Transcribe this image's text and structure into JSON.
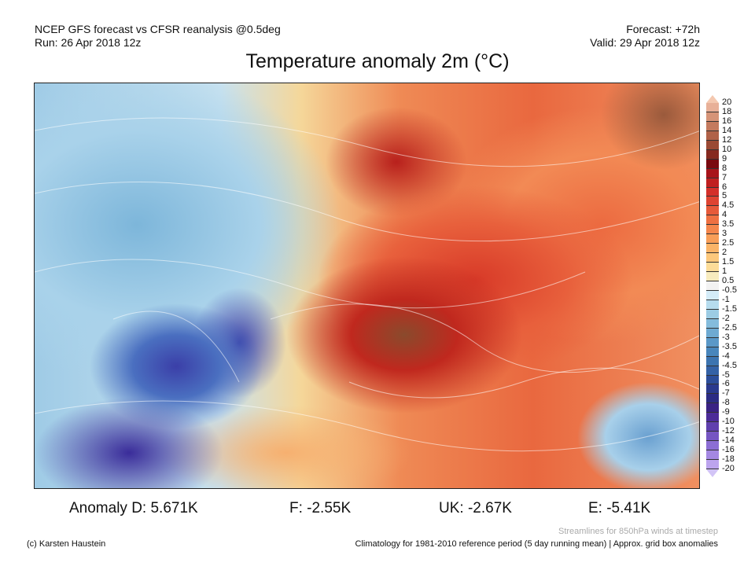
{
  "header": {
    "line1": "NCEP GFS forecast vs CFSR reanalysis @0.5deg",
    "line2": "Run: 26 Apr 2018 12z",
    "forecast": "Forecast: +72h",
    "valid": "Valid: 29 Apr 2018 12z"
  },
  "title": "Temperature anomaly 2m (°C)",
  "colorbar": {
    "labels": [
      "20",
      "18",
      "16",
      "14",
      "12",
      "10",
      "9",
      "8",
      "7",
      "6",
      "5",
      "4.5",
      "4",
      "3.5",
      "3",
      "2.5",
      "2",
      "1.5",
      "1",
      "0.5",
      "-0.5",
      "-1",
      "-1.5",
      "-2",
      "-2.5",
      "-3",
      "-3.5",
      "-4",
      "-4.5",
      "-5",
      "-6",
      "-7",
      "-8",
      "-9",
      "-10",
      "-12",
      "-14",
      "-16",
      "-18",
      "-20"
    ],
    "colors": [
      "#f4c8b0",
      "#e8b098",
      "#d69478",
      "#c47a5e",
      "#b06248",
      "#9a4a34",
      "#862a20",
      "#7a0a10",
      "#a8141a",
      "#c02020",
      "#d4302a",
      "#de4432",
      "#e65a3a",
      "#ee7042",
      "#f4864c",
      "#f89e58",
      "#fab468",
      "#fcc87c",
      "#fcdc98",
      "#f8ecbe",
      "#f2f2f2",
      "#d4ecf8",
      "#b6dcee",
      "#9ccce4",
      "#84bcdc",
      "#6eaad2",
      "#5a98c8",
      "#4886bc",
      "#3c74b0",
      "#3462a6",
      "#2c4e9a",
      "#2a3a8e",
      "#2c2c84",
      "#3a2284",
      "#4c2c98",
      "#6040ae",
      "#7656c2",
      "#8c6ed4",
      "#a488e2",
      "#bca4ee",
      "#d2c4f6"
    ]
  },
  "anomalies": {
    "d": "Anomaly D: 5.671K",
    "f": "F: -2.55K",
    "uk": "UK: -2.67K",
    "e": "E: -5.41K"
  },
  "footer": {
    "streamlines": "Streamlines for 850hPa winds at timestep",
    "credit": "(c) Karsten Haustein",
    "climatology": "Climatology for 1981-2010 reference period (5 day running mean) | Approx. grid box anomalies"
  }
}
